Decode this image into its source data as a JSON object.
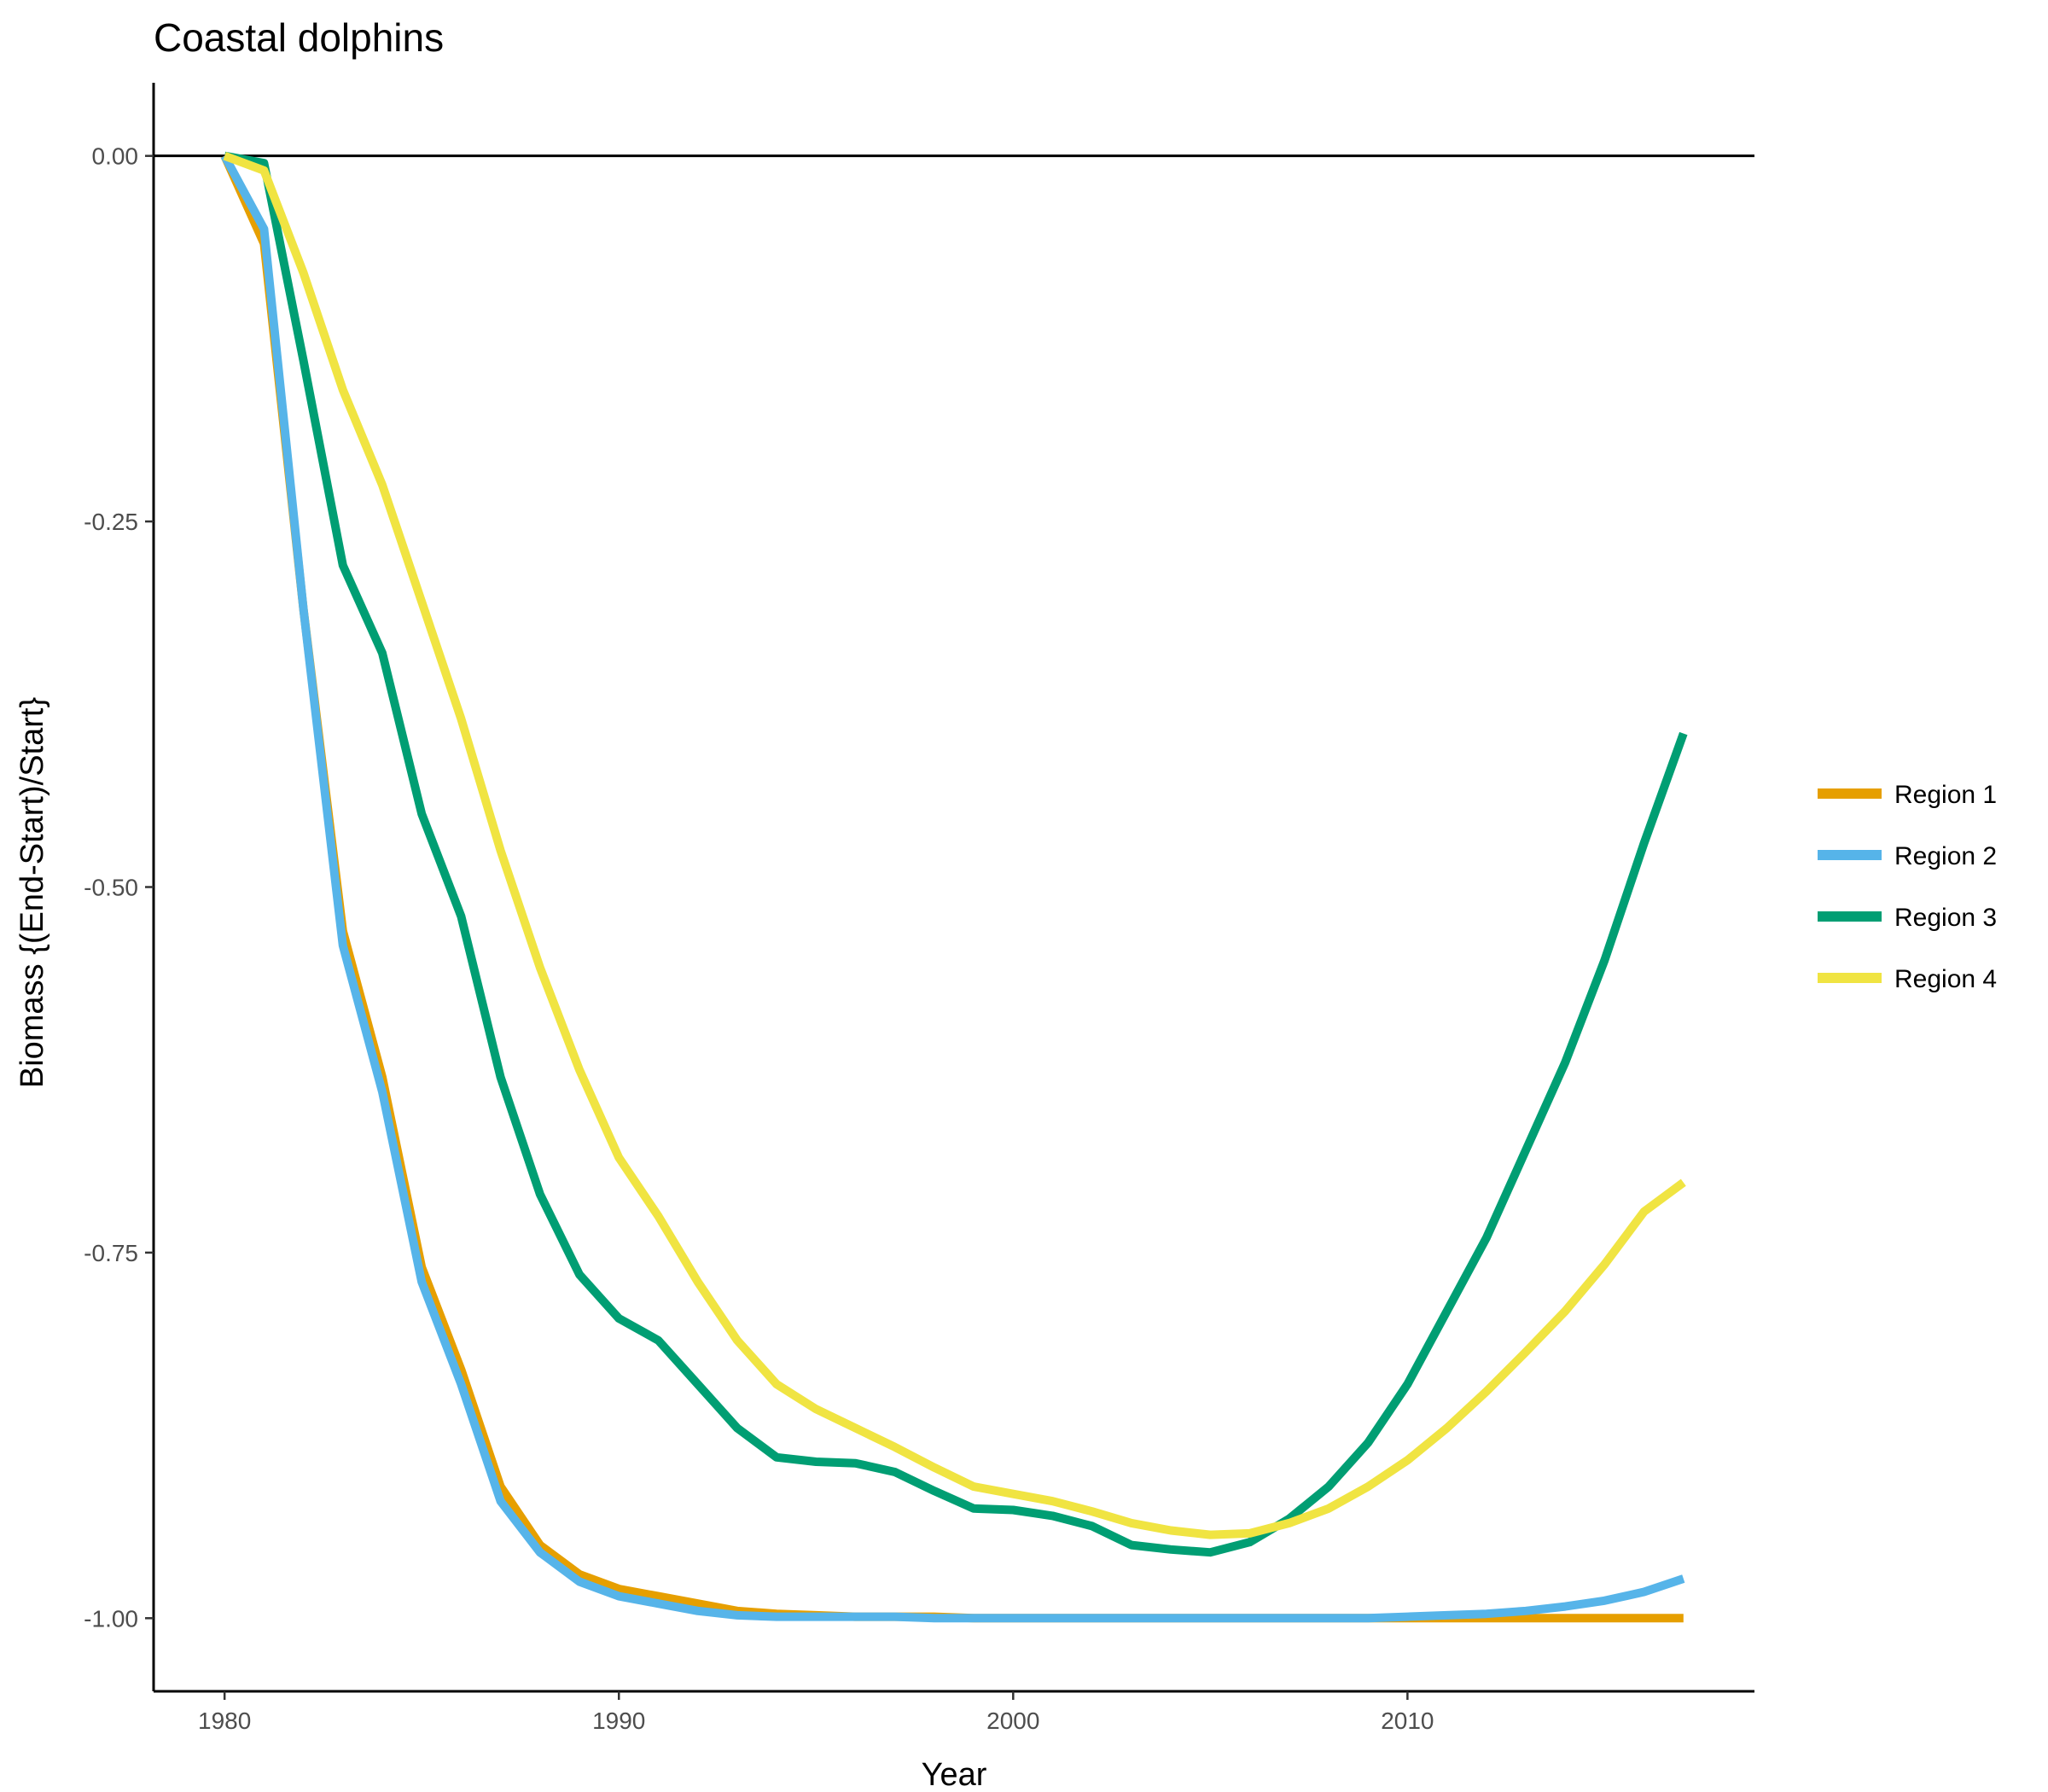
{
  "chart_data": {
    "type": "line",
    "title": "Coastal dolphins",
    "xlabel": "Year",
    "ylabel": "Biomass {(End-Start)/Start}",
    "xlim": [
      1978.2,
      2018.8
    ],
    "ylim": [
      -1.05,
      0.05
    ],
    "x_ticks": [
      1980,
      1990,
      2000,
      2010
    ],
    "y_ticks": [
      0.0,
      -0.25,
      -0.5,
      -0.75,
      -1.0
    ],
    "x_tick_labels": [
      "1980",
      "1990",
      "2000",
      "2010"
    ],
    "y_tick_labels": [
      "0.00",
      "-0.25",
      "-0.50",
      "-0.75",
      "-1.00"
    ],
    "reference_line_y": 0,
    "grid": false,
    "legend_position": "right",
    "x": [
      1980,
      1981,
      1982,
      1983,
      1984,
      1985,
      1986,
      1987,
      1988,
      1989,
      1990,
      1991,
      1992,
      1993,
      1994,
      1995,
      1996,
      1997,
      1998,
      1999,
      2000,
      2001,
      2002,
      2003,
      2004,
      2005,
      2006,
      2007,
      2008,
      2009,
      2010,
      2011,
      2012,
      2013,
      2014,
      2015,
      2016,
      2017
    ],
    "series": [
      {
        "name": "Region 1",
        "color": "#E69F00",
        "values": [
          0,
          -0.06,
          -0.31,
          -0.53,
          -0.63,
          -0.76,
          -0.83,
          -0.91,
          -0.95,
          -0.97,
          -0.98,
          -0.985,
          -0.99,
          -0.995,
          -0.997,
          -0.998,
          -0.999,
          -0.999,
          -0.999,
          -1.0,
          -1.0,
          -1.0,
          -1.0,
          -1.0,
          -1.0,
          -1.0,
          -1.0,
          -1.0,
          -1.0,
          -1.0,
          -1.0,
          -1.0,
          -1.0,
          -1.0,
          -1.0,
          -1.0,
          -1.0,
          -1.0
        ]
      },
      {
        "name": "Region 2",
        "color": "#56B4E9",
        "values": [
          0,
          -0.05,
          -0.31,
          -0.54,
          -0.64,
          -0.77,
          -0.84,
          -0.92,
          -0.955,
          -0.975,
          -0.985,
          -0.99,
          -0.995,
          -0.998,
          -0.999,
          -0.999,
          -0.999,
          -0.999,
          -1.0,
          -1.0,
          -1.0,
          -1.0,
          -1.0,
          -1.0,
          -1.0,
          -1.0,
          -1.0,
          -1.0,
          -1.0,
          -1.0,
          -0.999,
          -0.998,
          -0.997,
          -0.995,
          -0.992,
          -0.988,
          -0.982,
          -0.973
        ]
      },
      {
        "name": "Region 3",
        "color": "#009E73",
        "values": [
          0,
          -0.005,
          -0.14,
          -0.28,
          -0.34,
          -0.45,
          -0.52,
          -0.63,
          -0.71,
          -0.765,
          -0.795,
          -0.81,
          -0.84,
          -0.87,
          -0.89,
          -0.893,
          -0.894,
          -0.9,
          -0.913,
          -0.925,
          -0.926,
          -0.93,
          -0.937,
          -0.95,
          -0.953,
          -0.955,
          -0.948,
          -0.932,
          -0.91,
          -0.88,
          -0.84,
          -0.79,
          -0.74,
          -0.68,
          -0.62,
          -0.55,
          -0.47,
          -0.395
        ]
      },
      {
        "name": "Region 4",
        "color": "#F0E442",
        "values": [
          0,
          -0.01,
          -0.08,
          -0.16,
          -0.225,
          -0.305,
          -0.385,
          -0.475,
          -0.555,
          -0.625,
          -0.685,
          -0.725,
          -0.77,
          -0.81,
          -0.84,
          -0.857,
          -0.87,
          -0.883,
          -0.897,
          -0.91,
          -0.915,
          -0.92,
          -0.927,
          -0.935,
          -0.94,
          -0.943,
          -0.942,
          -0.935,
          -0.925,
          -0.91,
          -0.892,
          -0.87,
          -0.845,
          -0.818,
          -0.79,
          -0.758,
          -0.722,
          -0.702
        ]
      }
    ]
  }
}
